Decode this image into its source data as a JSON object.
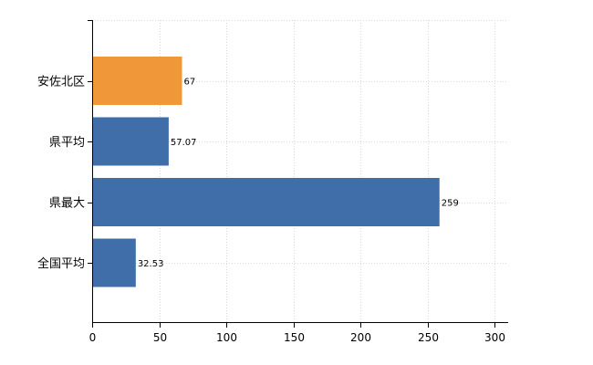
{
  "chart_data": {
    "type": "bar",
    "orientation": "horizontal",
    "categories": [
      "安佐北区",
      "県平均",
      "県最大",
      "全国平均"
    ],
    "values": [
      67,
      57.07,
      259,
      32.53
    ],
    "value_labels": [
      "67",
      "57.07",
      "259",
      "32.53"
    ],
    "bar_colors": [
      "#f0973a",
      "#3f6ea8",
      "#3f6ea8",
      "#3f6ea8"
    ],
    "highlight_color": "#f0973a",
    "series_color": "#3f6ea8",
    "title": "",
    "xlabel": "",
    "ylabel": "",
    "xlim": [
      0,
      300
    ],
    "x_ticks": [
      0,
      50,
      100,
      150,
      200,
      250,
      300
    ],
    "x_tick_labels": [
      "0",
      "50",
      "100",
      "150",
      "200",
      "250",
      "300"
    ],
    "grid": true,
    "legend": "none"
  }
}
